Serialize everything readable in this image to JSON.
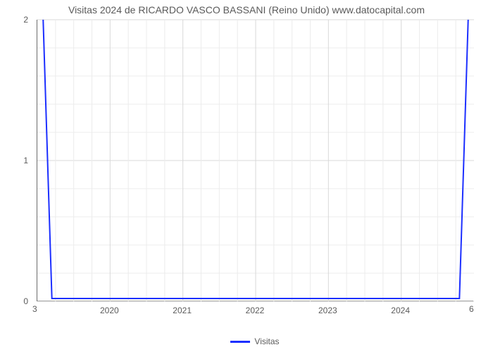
{
  "chart": {
    "type": "line",
    "title": "Visitas 2024 de RICARDO VASCO BASSANI (Reino Unido) www.datocapital.com",
    "title_fontsize": 14,
    "title_color": "#5a5a5a",
    "background_color": "#ffffff",
    "plot_border_color": "#6b6b6b",
    "grid_color": "#d9d9d9",
    "minor_grid_color": "#ececec",
    "x": {
      "type": "year",
      "range_start": 2019,
      "range_end": 2025,
      "tick_labels": [
        "2020",
        "2021",
        "2022",
        "2023",
        "2024"
      ],
      "tick_positions": [
        2020,
        2021,
        2022,
        2023,
        2024
      ],
      "minor_per_major": 3,
      "secondary_left_label": "3",
      "secondary_right_label": "6"
    },
    "y": {
      "min": 0,
      "max": 2,
      "tick_labels": [
        "0",
        "1",
        "2"
      ],
      "tick_positions": [
        0,
        1,
        2
      ],
      "minor_per_major": 4
    },
    "series": [
      {
        "name": "Visitas",
        "color": "#1c2fff",
        "line_width": 2,
        "points": [
          {
            "x": 2019.08,
            "y": 2.0
          },
          {
            "x": 2019.2,
            "y": 0.02
          },
          {
            "x": 2024.8,
            "y": 0.02
          },
          {
            "x": 2024.92,
            "y": 2.0
          }
        ]
      }
    ],
    "legend": {
      "label": "Visitas",
      "swatch_color": "#1c2fff"
    }
  }
}
